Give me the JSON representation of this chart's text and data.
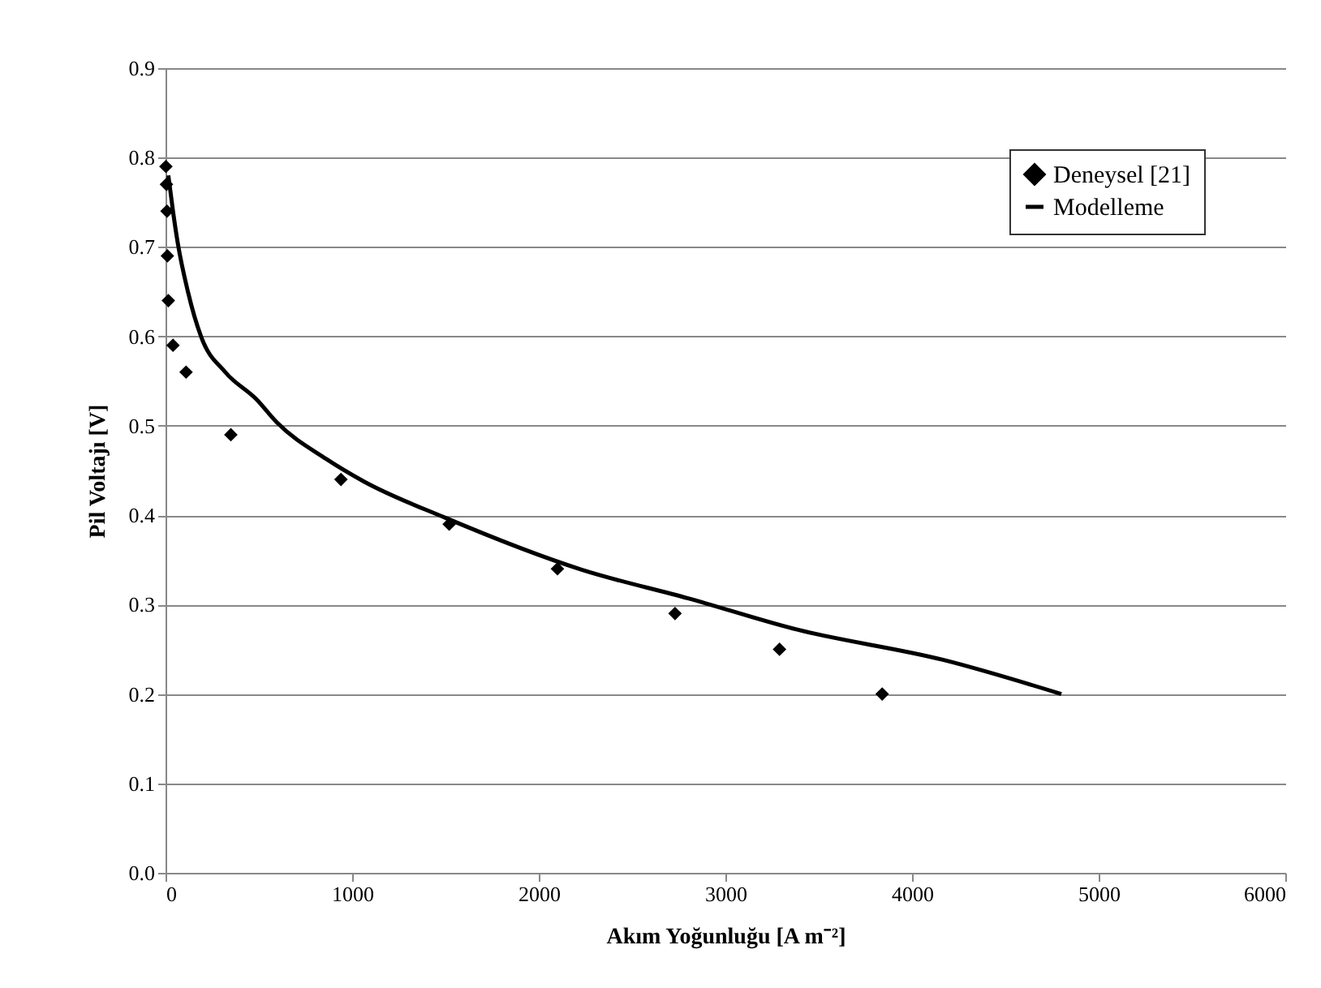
{
  "chart_data": {
    "type": "scatter",
    "xlabel": "Akım Yoğunluğu [A m⁻²]",
    "ylabel": "Pil Voltajı [V]",
    "xlim": [
      0,
      6000
    ],
    "xticks": [
      0,
      1000,
      2000,
      3000,
      4000,
      5000,
      6000
    ],
    "ylim": [
      0,
      0.9
    ],
    "yticks": [
      {
        "value": 0,
        "label": "0.0"
      },
      0.1,
      0.2,
      0.3,
      0.4,
      0.5,
      0.6,
      0.7,
      0.8,
      0.9
    ],
    "grid": "y",
    "legend": "top right",
    "series": [
      {
        "name": "Deneysel [21]",
        "marker": "diamond",
        "color": "#000000",
        "x": [
          2,
          5,
          8,
          10,
          15,
          40,
          110,
          350,
          940,
          1520,
          2100,
          2730,
          3290,
          3840
        ],
        "values": [
          0.79,
          0.77,
          0.74,
          0.69,
          0.64,
          0.59,
          0.56,
          0.49,
          0.44,
          0.39,
          0.34,
          0.29,
          0.25,
          0.2
        ]
      },
      {
        "name": "Modelleme",
        "type": "line",
        "line_style": "solid",
        "color": "#000000",
        "x": [
          15,
          40,
          65,
          120,
          190,
          320,
          485,
          600,
          860,
          1060,
          1500,
          2230,
          2800,
          3385,
          4170,
          4800
        ],
        "values": [
          0.78,
          0.74,
          0.705,
          0.65,
          0.6,
          0.56,
          0.53,
          0.503,
          0.463,
          0.438,
          0.397,
          0.339,
          0.307,
          0.272,
          0.238,
          0.2
        ]
      }
    ]
  }
}
